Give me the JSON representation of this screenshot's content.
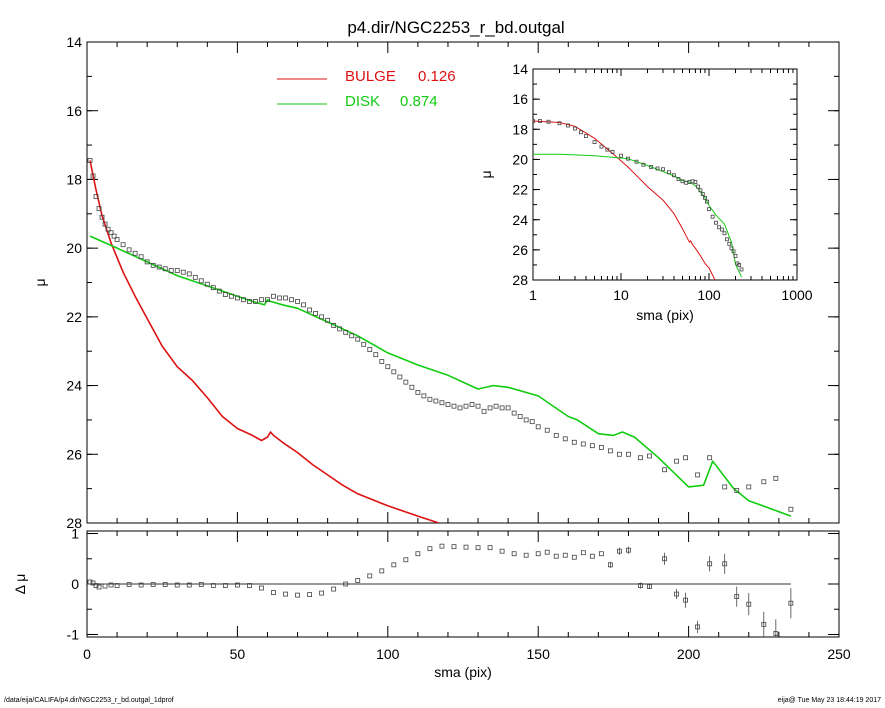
{
  "title": "p4.dir/NGC2253_r_bd.outgal",
  "footer": {
    "path": "/data/eija/CALIFA/p4.dir/NGC2253_r_bd.outgal_1dprof",
    "stamp": "eija@  Tue May 23 18:44:19 2017"
  },
  "colors": {
    "bulge": "#dd1111",
    "disk": "#11cc11",
    "points": "#444444",
    "axes": "#000000"
  },
  "chart_data": [
    {
      "id": "main",
      "type": "line",
      "xlabel": "sma (pix)",
      "ylabel": "μ",
      "xlim": [
        0,
        250
      ],
      "ylim": [
        28,
        14
      ],
      "x_ticks": [
        "0",
        "50",
        "100",
        "150",
        "200",
        "250"
      ],
      "y_ticks": [
        "14",
        "16",
        "18",
        "20",
        "22",
        "24",
        "26",
        "28"
      ],
      "legend": [
        {
          "label": "BULGE",
          "value": "0.126",
          "color": "#dd1111"
        },
        {
          "label": "DISK",
          "value": "0.874",
          "color": "#11cc11"
        }
      ],
      "series": [
        {
          "name": "BULGE",
          "style": "line",
          "x": [
            1,
            3,
            5,
            8,
            12,
            16,
            20,
            25,
            30,
            35,
            40,
            45,
            50,
            55,
            58,
            60,
            61,
            62,
            65,
            70,
            75,
            80,
            85,
            90,
            100,
            110,
            117
          ],
          "y": [
            17.45,
            18.3,
            19.05,
            19.85,
            20.7,
            21.4,
            22.05,
            22.85,
            23.45,
            23.85,
            24.35,
            24.9,
            25.25,
            25.45,
            25.6,
            25.5,
            25.35,
            25.45,
            25.65,
            25.95,
            26.3,
            26.6,
            26.9,
            27.15,
            27.5,
            27.8,
            28
          ]
        },
        {
          "name": "DISK",
          "style": "line",
          "x": [
            1,
            10,
            20,
            30,
            40,
            50,
            55,
            59,
            60,
            61,
            65,
            70,
            80,
            90,
            100,
            110,
            120,
            130,
            135,
            140,
            150,
            160,
            163,
            170,
            175,
            178,
            182,
            190,
            200,
            205,
            208,
            215,
            220,
            234
          ],
          "y": [
            19.65,
            20.0,
            20.4,
            20.8,
            21.1,
            21.4,
            21.55,
            21.65,
            21.5,
            21.55,
            21.65,
            21.75,
            22.15,
            22.55,
            23.05,
            23.4,
            23.7,
            24.1,
            24.0,
            24.05,
            24.3,
            24.9,
            25.0,
            25.4,
            25.45,
            25.35,
            25.5,
            26.1,
            26.95,
            26.9,
            26.2,
            27.0,
            27.35,
            27.8
          ]
        },
        {
          "name": "",
          "style": "markers",
          "x": [
            1,
            2,
            3,
            4,
            5,
            6,
            7,
            8,
            9,
            10,
            12,
            14,
            16,
            18,
            20,
            22,
            24,
            26,
            28,
            30,
            32,
            34,
            36,
            38,
            40,
            42,
            44,
            46,
            48,
            50,
            52,
            54,
            56,
            58,
            60,
            62,
            64,
            66,
            68,
            70,
            72,
            74,
            76,
            78,
            80,
            82,
            84,
            86,
            88,
            90,
            92,
            94,
            96,
            98,
            100,
            102,
            104,
            106,
            108,
            110,
            112,
            114,
            116,
            118,
            120,
            122,
            124,
            126,
            128,
            130,
            132,
            134,
            136,
            138,
            140,
            142,
            144,
            146,
            148,
            150,
            153,
            156,
            159,
            162,
            165,
            168,
            171,
            174,
            177,
            180,
            184,
            187,
            192,
            196,
            199,
            203,
            207,
            212,
            216,
            220,
            225,
            229,
            234
          ],
          "y": [
            17.45,
            17.9,
            18.5,
            18.85,
            19.1,
            19.3,
            19.45,
            19.55,
            19.65,
            19.75,
            19.9,
            20.05,
            20.15,
            20.25,
            20.4,
            20.5,
            20.55,
            20.6,
            20.65,
            20.65,
            20.7,
            20.75,
            20.85,
            20.95,
            21.05,
            21.15,
            21.25,
            21.35,
            21.4,
            21.45,
            21.5,
            21.55,
            21.55,
            21.5,
            21.5,
            21.4,
            21.45,
            21.45,
            21.5,
            21.55,
            21.65,
            21.8,
            21.9,
            22.0,
            22.1,
            22.25,
            22.35,
            22.45,
            22.55,
            22.65,
            22.8,
            22.95,
            23.1,
            23.3,
            23.45,
            23.6,
            23.75,
            23.9,
            24.05,
            24.2,
            24.3,
            24.4,
            24.45,
            24.5,
            24.55,
            24.6,
            24.65,
            24.6,
            24.55,
            24.6,
            24.75,
            24.65,
            24.6,
            24.65,
            24.65,
            24.8,
            24.9,
            25.0,
            25.05,
            25.2,
            25.3,
            25.45,
            25.55,
            25.65,
            25.7,
            25.75,
            25.8,
            25.9,
            26.0,
            26.0,
            26.1,
            26.05,
            26.45,
            26.2,
            26.1,
            26.6,
            26.1,
            26.95,
            27.05,
            26.95,
            26.8,
            26.7,
            27.6
          ]
        }
      ]
    },
    {
      "id": "residual",
      "type": "scatter",
      "xlabel": "sma (pix)",
      "ylabel": "Δ μ",
      "xlim": [
        0,
        250
      ],
      "ylim": [
        -1.05,
        1.05
      ],
      "x_ticks": [
        "0",
        "50",
        "100",
        "150",
        "200",
        "250"
      ],
      "y_ticks": [
        "1",
        "0",
        "-1"
      ],
      "reference_line": 0,
      "series": [
        {
          "name": "",
          "style": "markers",
          "x": [
            1,
            2,
            3,
            4,
            6,
            8,
            10,
            14,
            18,
            22,
            26,
            30,
            34,
            38,
            42,
            46,
            50,
            54,
            58,
            62,
            66,
            70,
            74,
            78,
            82,
            86,
            90,
            94,
            98,
            102,
            106,
            110,
            114,
            118,
            122,
            126,
            130,
            134,
            138,
            142,
            146,
            150,
            153,
            156,
            159,
            162,
            165,
            168,
            171,
            174,
            177,
            180,
            184,
            187,
            192,
            196,
            199,
            203,
            207,
            212,
            216,
            220,
            225,
            229,
            234
          ],
          "y": [
            0.04,
            0.02,
            -0.03,
            -0.06,
            -0.04,
            -0.02,
            -0.03,
            -0.01,
            -0.02,
            -0.01,
            -0.01,
            -0.02,
            -0.02,
            -0.01,
            -0.03,
            -0.03,
            -0.02,
            -0.03,
            -0.08,
            -0.17,
            -0.2,
            -0.22,
            -0.21,
            -0.18,
            -0.1,
            0.0,
            0.07,
            0.16,
            0.26,
            0.38,
            0.48,
            0.6,
            0.7,
            0.75,
            0.74,
            0.73,
            0.72,
            0.72,
            0.65,
            0.6,
            0.57,
            0.6,
            0.63,
            0.55,
            0.57,
            0.53,
            0.62,
            0.55,
            0.6,
            0.38,
            0.65,
            0.67,
            -0.03,
            -0.05,
            0.5,
            -0.2,
            -0.32,
            -0.85,
            0.4,
            0.4,
            -0.25,
            -0.4,
            -0.8,
            -0.98,
            -0.38
          ],
          "err": [
            0,
            0,
            0,
            0,
            0,
            0,
            0,
            0,
            0,
            0,
            0,
            0,
            0,
            0,
            0,
            0,
            0,
            0,
            0,
            0,
            0,
            0,
            0,
            0,
            0,
            0,
            0,
            0,
            0,
            0,
            0,
            0,
            0,
            0,
            0,
            0,
            0,
            0,
            0,
            0,
            0,
            0,
            0,
            0,
            0,
            0,
            0,
            0,
            0,
            0.06,
            0.07,
            0.07,
            0.06,
            0.05,
            0.12,
            0.1,
            0.15,
            0.12,
            0.15,
            0.2,
            0.2,
            0.22,
            0.25,
            0.28,
            0.3
          ]
        }
      ]
    },
    {
      "id": "inset",
      "type": "line",
      "xlabel": "sma (pix)",
      "ylabel": "μ",
      "xscale": "log",
      "xlim": [
        1,
        1000
      ],
      "ylim": [
        28,
        14
      ],
      "x_ticks": [
        "1",
        "10",
        "100",
        "1000"
      ],
      "y_ticks": [
        "14",
        "16",
        "18",
        "20",
        "22",
        "24",
        "26",
        "28"
      ],
      "series": [
        {
          "name": "BULGE",
          "style": "line",
          "x": [
            1,
            2,
            3,
            5,
            8,
            12,
            20,
            30,
            40,
            50,
            60,
            62,
            65,
            70,
            80,
            90,
            100,
            117
          ],
          "y": [
            17.45,
            17.55,
            17.8,
            18.6,
            19.6,
            20.5,
            21.8,
            22.7,
            23.6,
            24.6,
            25.5,
            25.4,
            25.65,
            25.9,
            26.4,
            26.9,
            27.2,
            28
          ]
        },
        {
          "name": "DISK",
          "style": "line",
          "x": [
            1,
            2,
            3,
            5,
            8,
            12,
            20,
            30,
            40,
            50,
            60,
            70,
            80,
            90,
            100,
            120,
            150,
            180,
            200,
            234
          ],
          "y": [
            19.65,
            19.65,
            19.7,
            19.75,
            19.85,
            19.95,
            20.4,
            20.8,
            21.1,
            21.4,
            21.5,
            21.75,
            22.15,
            22.55,
            23.05,
            23.7,
            24.3,
            25.5,
            26.95,
            27.8
          ]
        },
        {
          "name": "",
          "style": "markers",
          "x": [
            1,
            1.2,
            1.5,
            2,
            2.5,
            3,
            3.5,
            4,
            5,
            6,
            7,
            8,
            10,
            12,
            15,
            18,
            22,
            26,
            30,
            35,
            40,
            45,
            50,
            55,
            60,
            65,
            70,
            75,
            80,
            85,
            90,
            95,
            100,
            110,
            120,
            130,
            140,
            150,
            160,
            170,
            180,
            190,
            200,
            210,
            220,
            234
          ],
          "y": [
            17.45,
            17.45,
            17.5,
            17.6,
            17.75,
            17.95,
            18.2,
            18.45,
            18.85,
            19.15,
            19.35,
            19.5,
            19.75,
            19.95,
            20.15,
            20.35,
            20.5,
            20.6,
            20.65,
            20.85,
            21.05,
            21.3,
            21.45,
            21.55,
            21.5,
            21.45,
            21.5,
            21.8,
            22.05,
            22.3,
            22.55,
            22.8,
            23.3,
            23.8,
            24.2,
            24.5,
            24.65,
            24.9,
            25.3,
            25.6,
            25.9,
            26.1,
            26.4,
            26.9,
            27.0,
            27.3
          ]
        }
      ]
    }
  ]
}
